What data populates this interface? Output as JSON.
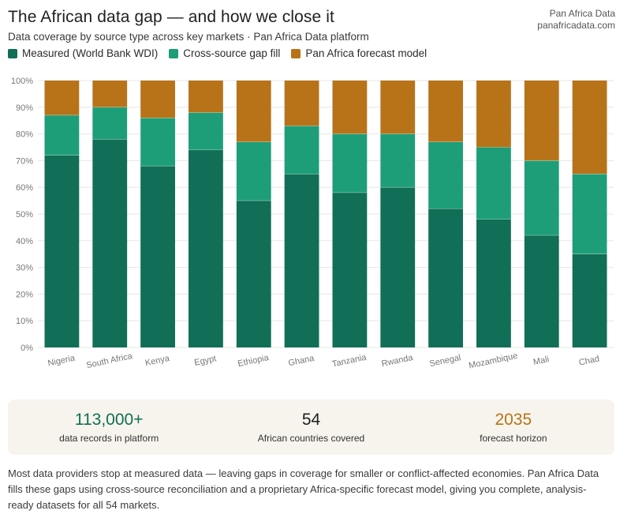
{
  "header": {
    "title": "The African data gap — and how we close it",
    "subtitle": "Data coverage by source type across key markets · Pan Africa Data platform",
    "brand_name": "Pan Africa Data",
    "brand_url": "panafricadata.com"
  },
  "colors": {
    "measured": "#116e57",
    "gap_fill": "#1d9e78",
    "forecast": "#b87318",
    "grid": "#e6e6e6",
    "axis_text": "#777777"
  },
  "legend": [
    {
      "label": "Measured (World Bank WDI)",
      "color": "#116e57"
    },
    {
      "label": "Cross-source gap fill",
      "color": "#1d9e78"
    },
    {
      "label": "Pan Africa forecast model",
      "color": "#b87318"
    }
  ],
  "chart_data": {
    "type": "bar",
    "stacked": true,
    "categories": [
      "Nigeria",
      "South Africa",
      "Kenya",
      "Egypt",
      "Ethiopia",
      "Ghana",
      "Tanzania",
      "Rwanda",
      "Senegal",
      "Mozambique",
      "Mali",
      "Chad"
    ],
    "series": [
      {
        "name": "Measured (World Bank WDI)",
        "color": "#116e57",
        "values": [
          72,
          78,
          68,
          74,
          55,
          65,
          58,
          60,
          52,
          48,
          42,
          35
        ]
      },
      {
        "name": "Cross-source gap fill",
        "color": "#1d9e78",
        "values": [
          15,
          12,
          18,
          14,
          22,
          18,
          22,
          20,
          25,
          27,
          28,
          30
        ]
      },
      {
        "name": "Pan Africa forecast model",
        "color": "#b87318",
        "values": [
          13,
          10,
          14,
          12,
          23,
          17,
          20,
          20,
          23,
          25,
          30,
          35
        ]
      }
    ],
    "yticks": [
      "0%",
      "10%",
      "20%",
      "30%",
      "40%",
      "50%",
      "60%",
      "70%",
      "80%",
      "90%",
      "100%"
    ],
    "ylim": [
      0,
      100
    ],
    "grid": true,
    "legend_position": "top-left"
  },
  "stats": [
    {
      "value": "113,000+",
      "label": "data records in platform",
      "color": "#116e57"
    },
    {
      "value": "54",
      "label": "African countries covered",
      "color": "#1f1f1f"
    },
    {
      "value": "2035",
      "label": "forecast horizon",
      "color": "#b87318"
    }
  ],
  "footnote": "Most data providers stop at measured data — leaving gaps in coverage for smaller or conflict-affected economies. Pan Africa Data fills these gaps using cross-source reconciliation and a proprietary Africa-specific forecast model, giving you complete, analysis-ready datasets for all 54 markets."
}
